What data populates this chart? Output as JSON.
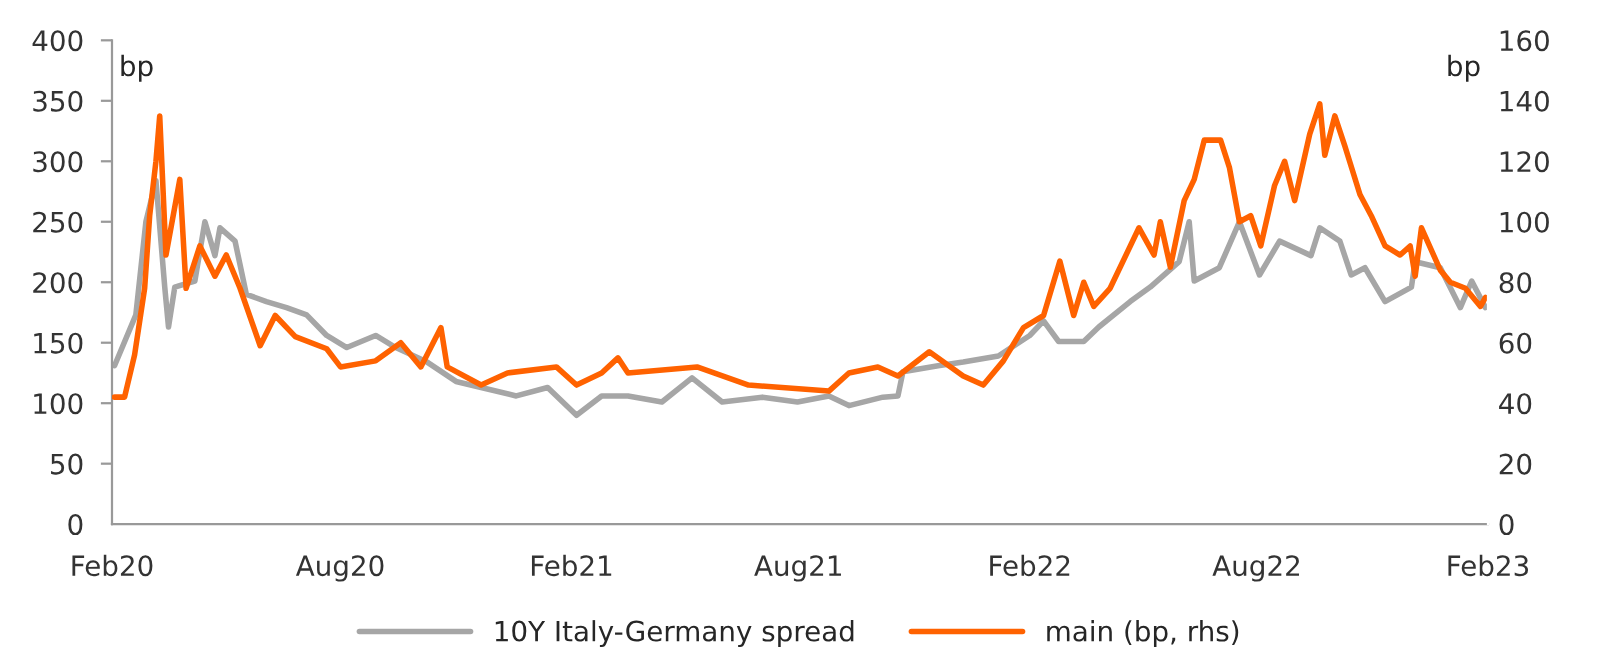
{
  "chart_data": {
    "type": "line",
    "ylabel": "bp",
    "y2label": "bp",
    "legend": "bottom",
    "grid": false,
    "marker": "none",
    "line_style": "solid",
    "xlim": [
      "2020-02-01",
      "2023-02-01"
    ],
    "xticks": [
      {
        "value": "2020-02-01",
        "label": "Feb20"
      },
      {
        "value": "2020-08-01",
        "label": "Aug20"
      },
      {
        "value": "2021-02-01",
        "label": "Feb21"
      },
      {
        "value": "2021-08-01",
        "label": "Aug21"
      },
      {
        "value": "2022-02-01",
        "label": "Feb22"
      },
      {
        "value": "2022-08-01",
        "label": "Aug22"
      },
      {
        "value": "2023-02-01",
        "label": "Feb23"
      }
    ],
    "ylim": [
      0,
      400
    ],
    "yticks": [
      0,
      50,
      100,
      150,
      200,
      250,
      300,
      350,
      400
    ],
    "y2lim": [
      0,
      160
    ],
    "y2ticks": [
      0,
      20,
      40,
      60,
      80,
      100,
      120,
      140,
      160
    ],
    "series": [
      {
        "name": "10Y Italy-Germany spread",
        "color": "#a6a6a6",
        "axis": "y",
        "x": [
          "2020-02-03",
          "2020-02-20",
          "2020-02-28",
          "2020-03-07",
          "2020-03-14",
          "2020-03-17",
          "2020-03-22",
          "2020-04-07",
          "2020-04-15",
          "2020-04-23",
          "2020-04-27",
          "2020-05-09",
          "2020-05-18",
          "2020-06-03",
          "2020-06-19",
          "2020-07-05",
          "2020-07-21",
          "2020-08-06",
          "2020-08-29",
          "2020-09-14",
          "2020-10-09",
          "2020-11-01",
          "2020-11-21",
          "2020-12-19",
          "2021-01-13",
          "2021-02-05",
          "2021-02-25",
          "2021-03-18",
          "2021-04-14",
          "2021-05-08",
          "2021-06-01",
          "2021-07-03",
          "2021-07-31",
          "2021-08-25",
          "2021-09-10",
          "2021-10-07",
          "2021-10-19",
          "2021-10-23",
          "2021-11-20",
          "2021-12-10",
          "2022-01-07",
          "2022-02-01",
          "2022-02-12",
          "2022-02-24",
          "2022-03-16",
          "2022-03-28",
          "2022-04-22",
          "2022-05-08",
          "2022-05-31",
          "2022-06-08",
          "2022-06-12",
          "2022-07-02",
          "2022-07-18",
          "2022-08-03",
          "2022-08-19",
          "2022-09-13",
          "2022-09-20",
          "2022-10-06",
          "2022-10-15",
          "2022-10-26",
          "2022-11-11",
          "2022-12-02",
          "2022-12-05",
          "2022-12-25",
          "2023-01-10",
          "2023-01-19",
          "2023-01-30"
        ],
        "values": [
          131,
          173,
          250,
          284,
          196,
          163,
          196,
          201,
          250,
          222,
          245,
          234,
          190,
          184,
          179,
          173,
          156,
          146,
          156,
          146,
          134,
          118,
          113,
          106,
          113,
          90,
          106,
          106,
          101,
          121,
          101,
          105,
          101,
          106,
          98,
          105,
          106,
          126,
          131,
          134,
          139,
          156,
          168,
          151,
          151,
          163,
          184,
          196,
          217,
          250,
          201,
          212,
          250,
          206,
          234,
          222,
          245,
          234,
          206,
          212,
          184,
          196,
          217,
          212,
          179,
          201,
          179
        ]
      },
      {
        "name": "main (bp, rhs)",
        "color": "#ff6200",
        "axis": "y2",
        "x": [
          "2020-02-03",
          "2020-02-11",
          "2020-02-19",
          "2020-02-27",
          "2020-03-02",
          "2020-03-07",
          "2020-03-10",
          "2020-03-15",
          "2020-03-26",
          "2020-03-31",
          "2020-04-11",
          "2020-04-23",
          "2020-05-02",
          "2020-05-13",
          "2020-05-29",
          "2020-06-10",
          "2020-06-26",
          "2020-07-21",
          "2020-08-01",
          "2020-08-29",
          "2020-09-18",
          "2020-10-04",
          "2020-10-20",
          "2020-10-25",
          "2020-11-21",
          "2020-12-12",
          "2021-01-20",
          "2021-02-05",
          "2021-02-25",
          "2021-03-10",
          "2021-03-18",
          "2021-05-12",
          "2021-06-22",
          "2021-08-25",
          "2021-09-10",
          "2021-10-03",
          "2021-10-19",
          "2021-11-13",
          "2021-12-10",
          "2021-12-26",
          "2022-01-11",
          "2022-01-27",
          "2022-02-12",
          "2022-02-25",
          "2022-03-08",
          "2022-03-16",
          "2022-03-24",
          "2022-04-06",
          "2022-04-29",
          "2022-05-11",
          "2022-05-16",
          "2022-05-24",
          "2022-06-04",
          "2022-06-12",
          "2022-06-20",
          "2022-07-03",
          "2022-07-10",
          "2022-07-18",
          "2022-07-27",
          "2022-08-04",
          "2022-08-15",
          "2022-08-23",
          "2022-08-31",
          "2022-09-12",
          "2022-09-20",
          "2022-09-24",
          "2022-10-02",
          "2022-10-10",
          "2022-10-22",
          "2022-10-31",
          "2022-11-11",
          "2022-11-23",
          "2022-12-01",
          "2022-12-05",
          "2022-12-10",
          "2022-12-25",
          "2023-01-02",
          "2023-01-14",
          "2023-01-26",
          "2023-01-30"
        ],
        "values": [
          42,
          42,
          56,
          78,
          102,
          120,
          135,
          89,
          114,
          78,
          92,
          82,
          89,
          78,
          59,
          69,
          62,
          58,
          52,
          54,
          60,
          52,
          65,
          52,
          46,
          50,
          52,
          46,
          50,
          55,
          50,
          52,
          46,
          44,
          50,
          52,
          49,
          57,
          49,
          46,
          54,
          65,
          69,
          87,
          69,
          80,
          72,
          78,
          98,
          89,
          100,
          85,
          107,
          114,
          127,
          127,
          118,
          100,
          102,
          92,
          112,
          120,
          107,
          129,
          139,
          122,
          135,
          125,
          109,
          102,
          92,
          89,
          92,
          82,
          98,
          84,
          80,
          78,
          72,
          75
        ]
      }
    ]
  }
}
